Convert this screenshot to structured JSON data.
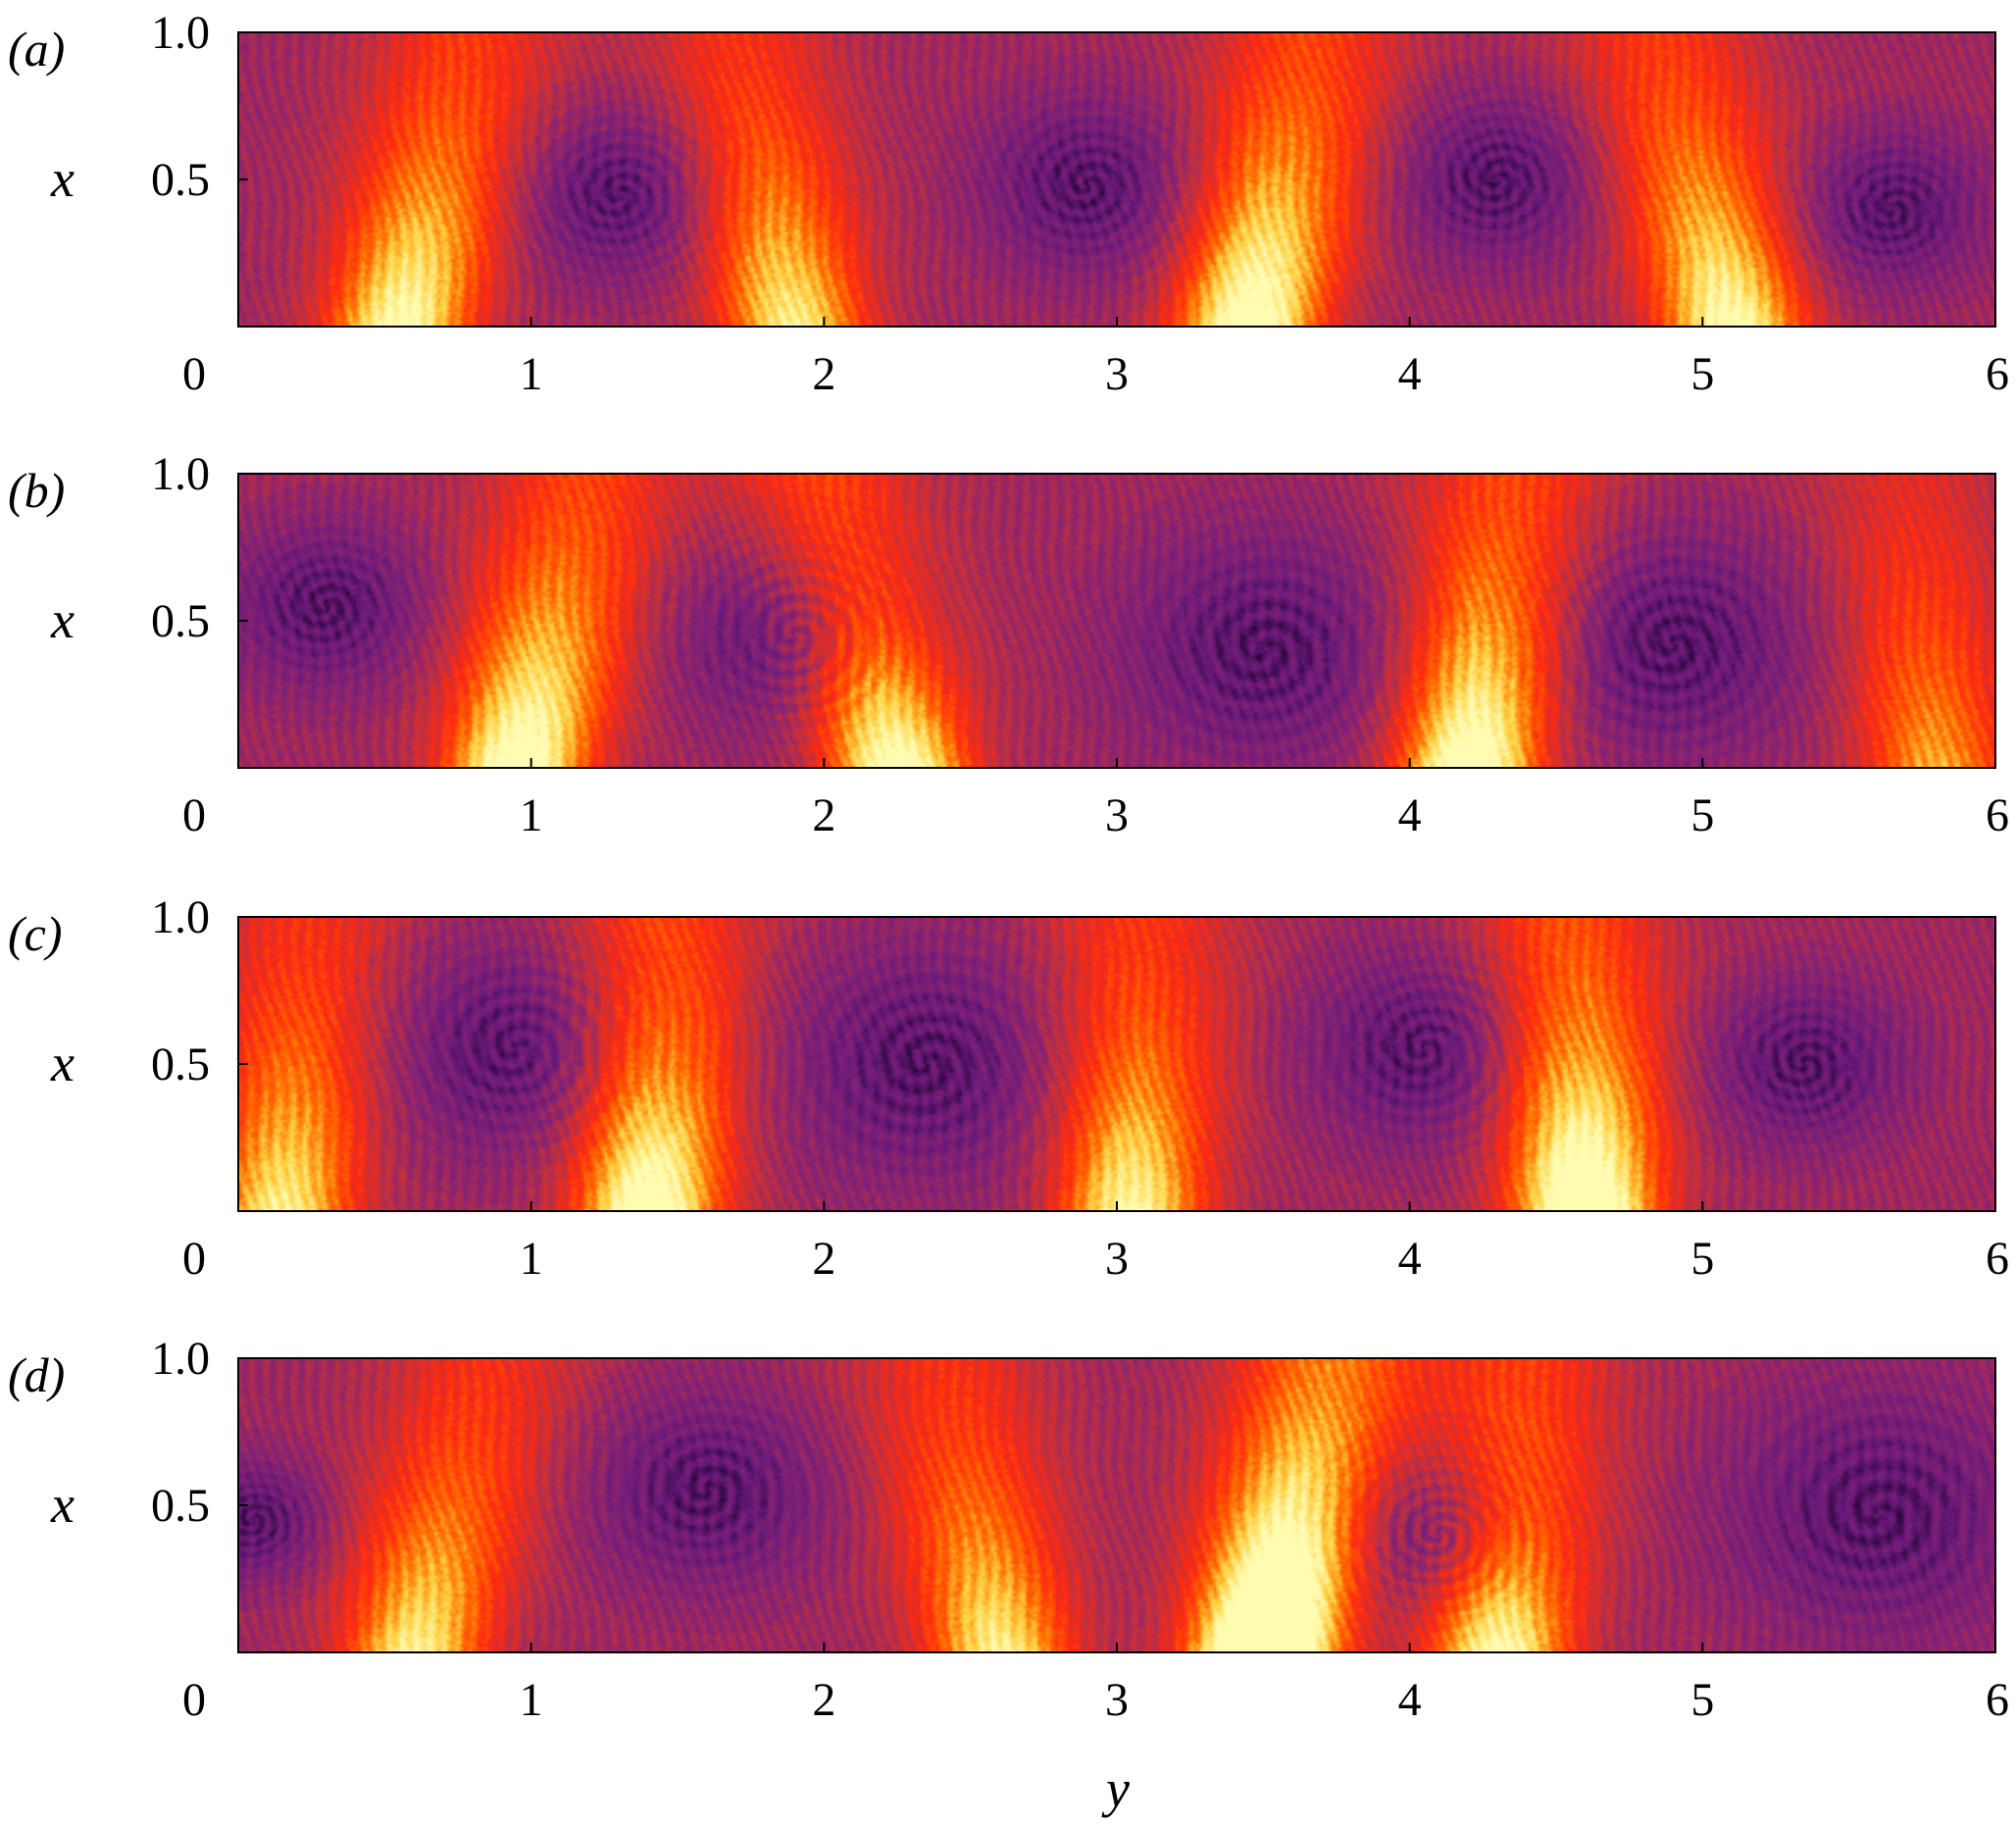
{
  "chart_data": {
    "type": "heatmap",
    "xlabel": "y",
    "ylabel": "x",
    "xlim": [
      0,
      6
    ],
    "ylim": [
      0,
      1
    ],
    "x_ticks": [
      "0",
      "1",
      "2",
      "3",
      "4",
      "5",
      "6"
    ],
    "y_ticks": [
      "0.5",
      "1.0"
    ],
    "colormap": [
      "#000000",
      "#3a0a4a",
      "#6a1a7a",
      "#8a2470",
      "#c03040",
      "#ff2a10",
      "#ff6a00",
      "#ffd040",
      "#fffbb0"
    ],
    "panels": [
      {
        "label": "(a)",
        "vortices": [
          {
            "y": 1.3,
            "x": 0.45,
            "r": 0.3
          },
          {
            "y": 2.9,
            "x": 0.48,
            "r": 0.32
          },
          {
            "y": 4.3,
            "x": 0.5,
            "r": 0.3
          },
          {
            "y": 5.65,
            "x": 0.4,
            "r": 0.28
          }
        ],
        "jets": [
          {
            "y": 0.55,
            "strength": 0.9
          },
          {
            "y": 1.9,
            "strength": 0.8
          },
          {
            "y": 3.45,
            "strength": 1.0
          },
          {
            "y": 5.1,
            "strength": 0.9
          }
        ]
      },
      {
        "label": "(b)",
        "vortices": [
          {
            "y": 0.3,
            "x": 0.55,
            "r": 0.3
          },
          {
            "y": 1.9,
            "x": 0.45,
            "r": 0.35
          },
          {
            "y": 3.5,
            "x": 0.4,
            "r": 0.42
          },
          {
            "y": 4.9,
            "x": 0.42,
            "r": 0.4
          }
        ],
        "jets": [
          {
            "y": 0.95,
            "strength": 1.0
          },
          {
            "y": 2.25,
            "strength": 0.95
          },
          {
            "y": 4.2,
            "strength": 1.0
          },
          {
            "y": 5.8,
            "strength": 0.6
          }
        ]
      },
      {
        "label": "(c)",
        "vortices": [
          {
            "y": 0.95,
            "x": 0.55,
            "r": 0.38
          },
          {
            "y": 2.35,
            "x": 0.5,
            "r": 0.42
          },
          {
            "y": 4.05,
            "x": 0.55,
            "r": 0.35
          },
          {
            "y": 5.35,
            "x": 0.5,
            "r": 0.3
          }
        ],
        "jets": [
          {
            "y": 0.15,
            "strength": 0.8
          },
          {
            "y": 1.4,
            "strength": 1.0
          },
          {
            "y": 3.05,
            "strength": 0.85
          },
          {
            "y": 4.6,
            "strength": 1.1
          }
        ]
      },
      {
        "label": "(d)",
        "vortices": [
          {
            "y": 0.05,
            "x": 0.45,
            "r": 0.22
          },
          {
            "y": 1.6,
            "x": 0.55,
            "r": 0.35
          },
          {
            "y": 4.1,
            "x": 0.4,
            "r": 0.3
          },
          {
            "y": 5.6,
            "x": 0.47,
            "r": 0.45
          }
        ],
        "jets": [
          {
            "y": 0.6,
            "strength": 0.8
          },
          {
            "y": 2.6,
            "strength": 0.8
          },
          {
            "y": 3.5,
            "strength": 1.4
          },
          {
            "y": 4.3,
            "strength": 0.9
          }
        ]
      }
    ]
  }
}
